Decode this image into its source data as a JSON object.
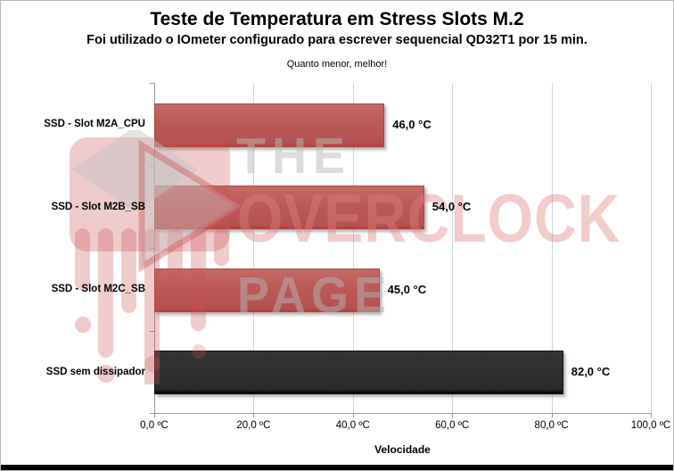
{
  "header": {
    "title": "Teste de Temperatura em Stress Slots M.2",
    "subtitle": "Foi utilizado o IOmeter configurado para escrever sequencial QD32T1 por 15 min.",
    "note": "Quanto menor, melhor!"
  },
  "watermark": {
    "line1": "THE",
    "line2": "OVERCLOCK",
    "line3": "PAGE",
    "logo": "overclock-page-melting-logo"
  },
  "chart_data": {
    "type": "bar",
    "orientation": "horizontal",
    "title": "Teste de Temperatura em Stress Slots M.2",
    "subtitle": "Foi utilizado o IOmeter configurado para escrever sequencial QD32T1 por 15 min.",
    "note": "Quanto menor, melhor!",
    "categories": [
      "SSD - Slot M2A_CPU",
      "SSD - Slot M2B_SB",
      "SSD - Slot M2C_SB",
      "SSD sem dissipador"
    ],
    "values": [
      46.0,
      54.0,
      45.0,
      82.0
    ],
    "value_labels": [
      "46,0 °C",
      "54,0 °C",
      "45,0 °C",
      "82,0 °C"
    ],
    "bar_styles": [
      "red",
      "red",
      "red",
      "dark"
    ],
    "xlabel": "Velocidade",
    "xlim": [
      0,
      100
    ],
    "x_tick_values": [
      0,
      20,
      40,
      60,
      80,
      100
    ],
    "x_tick_labels": [
      "0,0 ºC",
      "20,0 ºC",
      "40,0 ºC",
      "60,0 ºC",
      "80,0 ºC",
      "100,0 ºC"
    ],
    "grid": true,
    "legend": "none"
  },
  "colors": {
    "bar_red": "#BB5955",
    "bar_dark": "#2B2B2B",
    "gridline": "#C9D6E7",
    "axis_line": "#9A9A9A",
    "watermark_pink": "#F4D4D4",
    "watermark_gray": "#E3E3E3"
  }
}
